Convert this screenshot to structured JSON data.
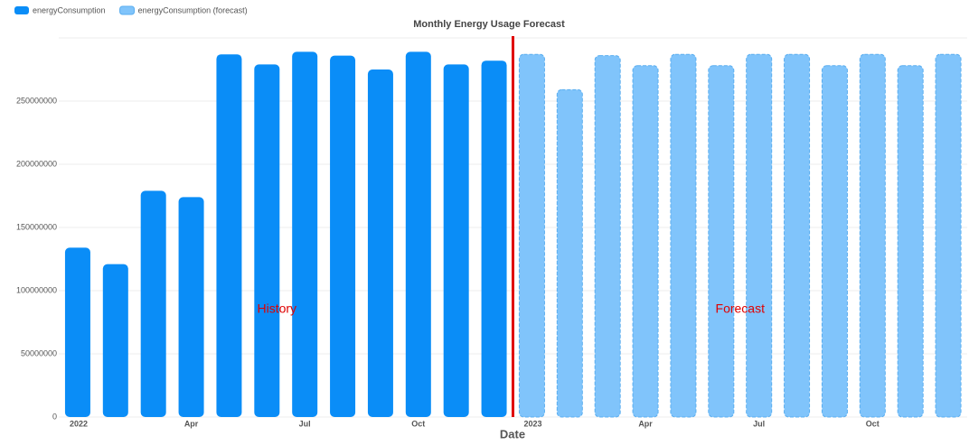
{
  "chart_data": {
    "type": "bar",
    "title": "Monthly Energy Usage Forecast",
    "x_label": "Date",
    "categories": [
      "2022",
      null,
      null,
      "Apr",
      null,
      null,
      "Jul",
      null,
      null,
      "Oct",
      null,
      null,
      "2023",
      null,
      null,
      "Apr",
      null,
      null,
      "Jul",
      null,
      null,
      "Oct",
      null,
      null
    ],
    "series": [
      {
        "name": "energyConsumption",
        "color": "#0a8df7",
        "values": [
          134000000,
          121000000,
          179000000,
          174000000,
          287000000,
          279000000,
          289000000,
          286000000,
          275000000,
          289000000,
          279000000,
          282000000,
          null,
          null,
          null,
          null,
          null,
          null,
          null,
          null,
          null,
          null,
          null,
          null
        ]
      },
      {
        "name": "energyConsumption (forecast)",
        "color": "#80c4fb",
        "values": [
          null,
          null,
          null,
          null,
          null,
          null,
          null,
          null,
          null,
          null,
          null,
          null,
          287000000,
          259000000,
          286000000,
          278000000,
          287000000,
          278000000,
          287000000,
          287000000,
          278000000,
          287000000,
          278000000,
          287000000
        ]
      }
    ],
    "ylim": [
      0,
      300000000
    ],
    "yticks": [
      0,
      50000000,
      100000000,
      150000000,
      200000000,
      250000000
    ],
    "grid": true,
    "annotations": [
      "History",
      "Forecast"
    ]
  }
}
